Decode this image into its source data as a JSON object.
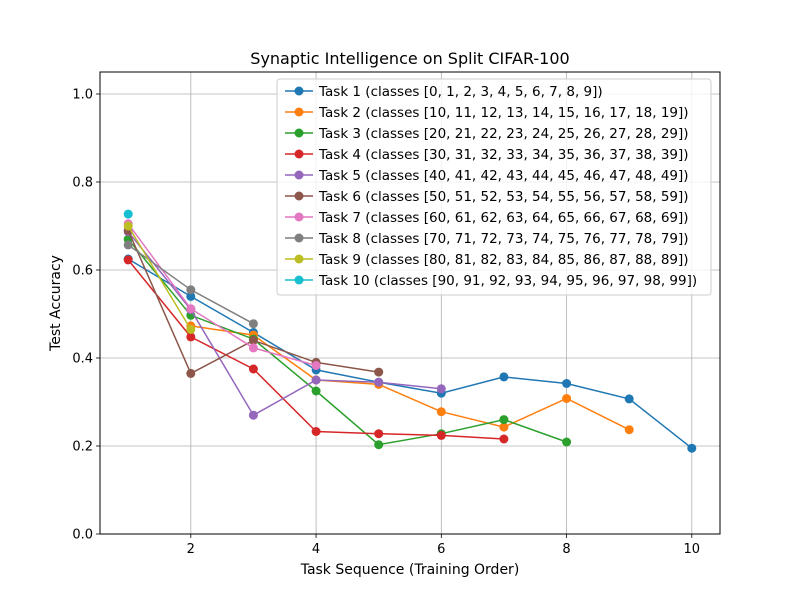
{
  "chart_data": {
    "type": "line",
    "title": "Synaptic Intelligence on Split CIFAR-100",
    "xlabel": "Task Sequence (Training Order)",
    "ylabel": "Test Accuracy",
    "xlim": [
      0.55,
      10.45
    ],
    "ylim": [
      0,
      1.05
    ],
    "xticks": [
      2,
      4,
      6,
      8,
      10
    ],
    "yticks": [
      0.0,
      0.2,
      0.4,
      0.6,
      0.8,
      1.0
    ],
    "xtick_labels": [
      "2",
      "4",
      "6",
      "8",
      "10"
    ],
    "ytick_labels": [
      "0.0",
      "0.2",
      "0.4",
      "0.6",
      "0.8",
      "1.0"
    ],
    "grid": true,
    "legend_position": "top-right",
    "series": [
      {
        "name": "Task 1 (classes [0, 1, 2, 3, 4, 5, 6, 7, 8, 9])",
        "color": "#1f77b4",
        "x": [
          1,
          2,
          3,
          4,
          5,
          6,
          7,
          8,
          9,
          10
        ],
        "y": [
          0.625,
          0.54,
          0.458,
          0.373,
          0.345,
          0.32,
          0.357,
          0.342,
          0.307,
          0.195
        ]
      },
      {
        "name": "Task 2 (classes [10, 11, 12, 13, 14, 15, 16, 17, 18, 19])",
        "color": "#ff7f0e",
        "x": [
          2,
          3,
          4,
          5,
          6,
          7,
          8,
          9
        ],
        "y": [
          0.473,
          0.452,
          0.35,
          0.34,
          0.278,
          0.243,
          0.308,
          0.237
        ]
      },
      {
        "name": "Task 3 (classes [20, 21, 22, 23, 24, 25, 26, 27, 28, 29])",
        "color": "#2ca02c",
        "x": [
          1,
          2,
          3,
          4,
          5,
          6,
          7,
          8
        ],
        "y": [
          0.67,
          0.497,
          0.443,
          0.325,
          0.203,
          0.228,
          0.26,
          0.209
        ]
      },
      {
        "name": "Task 4 (classes [30, 31, 32, 33, 34, 35, 36, 37, 38, 39])",
        "color": "#d62728",
        "x": [
          1,
          2,
          3,
          4,
          5,
          6,
          7
        ],
        "y": [
          0.623,
          0.448,
          0.375,
          0.233,
          0.228,
          0.224,
          0.216
        ]
      },
      {
        "name": "Task 5 (classes [40, 41, 42, 43, 44, 45, 46, 47, 48, 49])",
        "color": "#9467bd",
        "x": [
          1,
          2,
          3,
          4,
          5,
          6
        ],
        "y": [
          0.687,
          0.51,
          0.27,
          0.35,
          0.345,
          0.33
        ]
      },
      {
        "name": "Task 6 (classes [50, 51, 52, 53, 54, 55, 56, 57, 58, 59])",
        "color": "#8c564b",
        "x": [
          1,
          2,
          3,
          4,
          5
        ],
        "y": [
          0.69,
          0.365,
          0.44,
          0.39,
          0.368
        ]
      },
      {
        "name": "Task 7 (classes [60, 61, 62, 63, 64, 65, 66, 67, 68, 69])",
        "color": "#e377c2",
        "x": [
          1,
          2,
          3,
          4
        ],
        "y": [
          0.705,
          0.512,
          0.423,
          0.383
        ]
      },
      {
        "name": "Task 8 (classes [70, 71, 72, 73, 74, 75, 76, 77, 78, 79])",
        "color": "#7f7f7f",
        "x": [
          1,
          2,
          3
        ],
        "y": [
          0.657,
          0.555,
          0.478
        ]
      },
      {
        "name": "Task 9 (classes [80, 81, 82, 83, 84, 85, 86, 87, 88, 89])",
        "color": "#bcbd22",
        "x": [
          1,
          2
        ],
        "y": [
          0.7,
          0.465
        ]
      },
      {
        "name": "Task 10 (classes [90, 91, 92, 93, 94, 95, 96, 97, 98, 99])",
        "color": "#17becf",
        "x": [
          1
        ],
        "y": [
          0.727
        ]
      }
    ]
  }
}
